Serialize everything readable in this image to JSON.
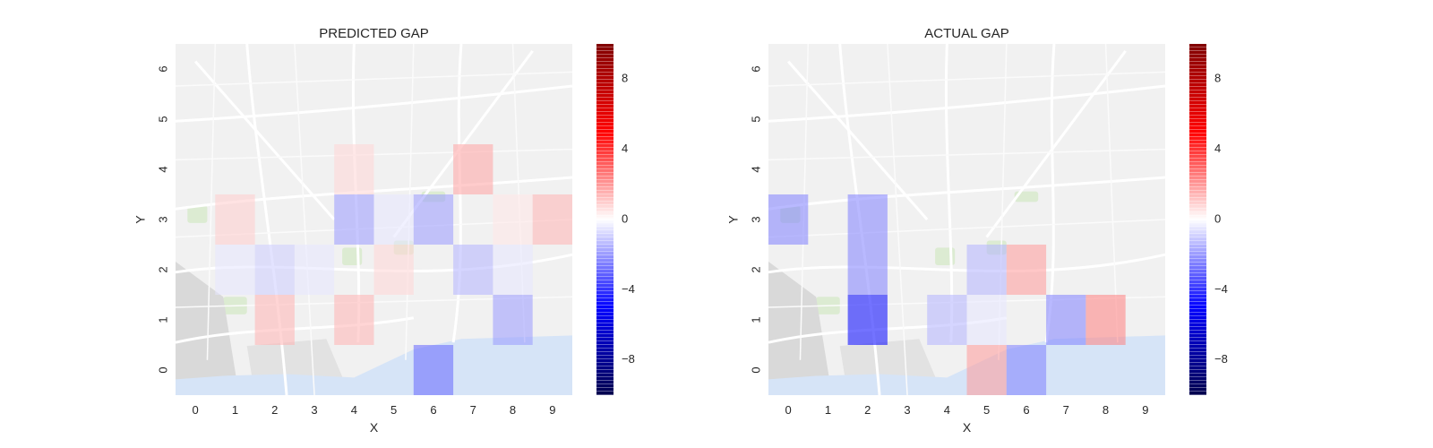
{
  "chart_data": [
    {
      "type": "heatmap",
      "title": "PREDICTED GAP",
      "xlabel": "X",
      "ylabel": "Y",
      "x_ticks": [
        "0",
        "1",
        "2",
        "3",
        "4",
        "5",
        "6",
        "7",
        "8",
        "9"
      ],
      "y_ticks": [
        "0",
        "1",
        "2",
        "3",
        "4",
        "5",
        "6"
      ],
      "background": "street map of Porto",
      "colormap": "seismic",
      "vmin": -10,
      "vmax": 10,
      "colorbar_ticks": [
        "8",
        "4",
        "0",
        "−4",
        "−8"
      ],
      "colorbar_values": [
        8,
        4,
        0,
        -4,
        -8
      ],
      "cells": [
        {
          "x": 6,
          "y": 0,
          "value": -3.0
        },
        {
          "x": 2,
          "y": 1,
          "value": 1.5
        },
        {
          "x": 4,
          "y": 1,
          "value": 1.5
        },
        {
          "x": 8,
          "y": 1,
          "value": -2.0
        },
        {
          "x": 1,
          "y": 2,
          "value": -0.5
        },
        {
          "x": 2,
          "y": 2,
          "value": -1.0
        },
        {
          "x": 3,
          "y": 2,
          "value": -0.5
        },
        {
          "x": 5,
          "y": 2,
          "value": 0.8
        },
        {
          "x": 7,
          "y": 2,
          "value": -1.5
        },
        {
          "x": 8,
          "y": 2,
          "value": -0.5
        },
        {
          "x": 1,
          "y": 3,
          "value": 1.0
        },
        {
          "x": 4,
          "y": 3,
          "value": -2.0
        },
        {
          "x": 5,
          "y": 3,
          "value": -0.5
        },
        {
          "x": 6,
          "y": 3,
          "value": -2.0
        },
        {
          "x": 8,
          "y": 3,
          "value": 0.5
        },
        {
          "x": 9,
          "y": 3,
          "value": 1.5
        },
        {
          "x": 4,
          "y": 4,
          "value": 0.8
        },
        {
          "x": 7,
          "y": 4,
          "value": 1.8
        }
      ]
    },
    {
      "type": "heatmap",
      "title": "ACTUAL GAP",
      "xlabel": "X",
      "ylabel": "Y",
      "x_ticks": [
        "0",
        "1",
        "2",
        "3",
        "4",
        "5",
        "6",
        "7",
        "8",
        "9"
      ],
      "y_ticks": [
        "0",
        "1",
        "2",
        "3",
        "4",
        "5",
        "6"
      ],
      "background": "street map of Porto",
      "colormap": "seismic",
      "vmin": -10,
      "vmax": 10,
      "colorbar_ticks": [
        "8",
        "4",
        "0",
        "−4",
        "−8"
      ],
      "colorbar_values": [
        8,
        4,
        0,
        -4,
        -8
      ],
      "cells": [
        {
          "x": 5,
          "y": 0,
          "value": 2.0
        },
        {
          "x": 6,
          "y": 0,
          "value": -2.5
        },
        {
          "x": 2,
          "y": 1,
          "value": -5.0
        },
        {
          "x": 4,
          "y": 1,
          "value": -1.5
        },
        {
          "x": 5,
          "y": 1,
          "value": -0.5
        },
        {
          "x": 7,
          "y": 1,
          "value": -2.5
        },
        {
          "x": 8,
          "y": 1,
          "value": 2.5
        },
        {
          "x": 2,
          "y": 2,
          "value": -2.5
        },
        {
          "x": 5,
          "y": 2,
          "value": -1.5
        },
        {
          "x": 6,
          "y": 2,
          "value": 2.0
        },
        {
          "x": 0,
          "y": 3,
          "value": -2.5
        },
        {
          "x": 2,
          "y": 3,
          "value": -2.5
        }
      ]
    }
  ]
}
